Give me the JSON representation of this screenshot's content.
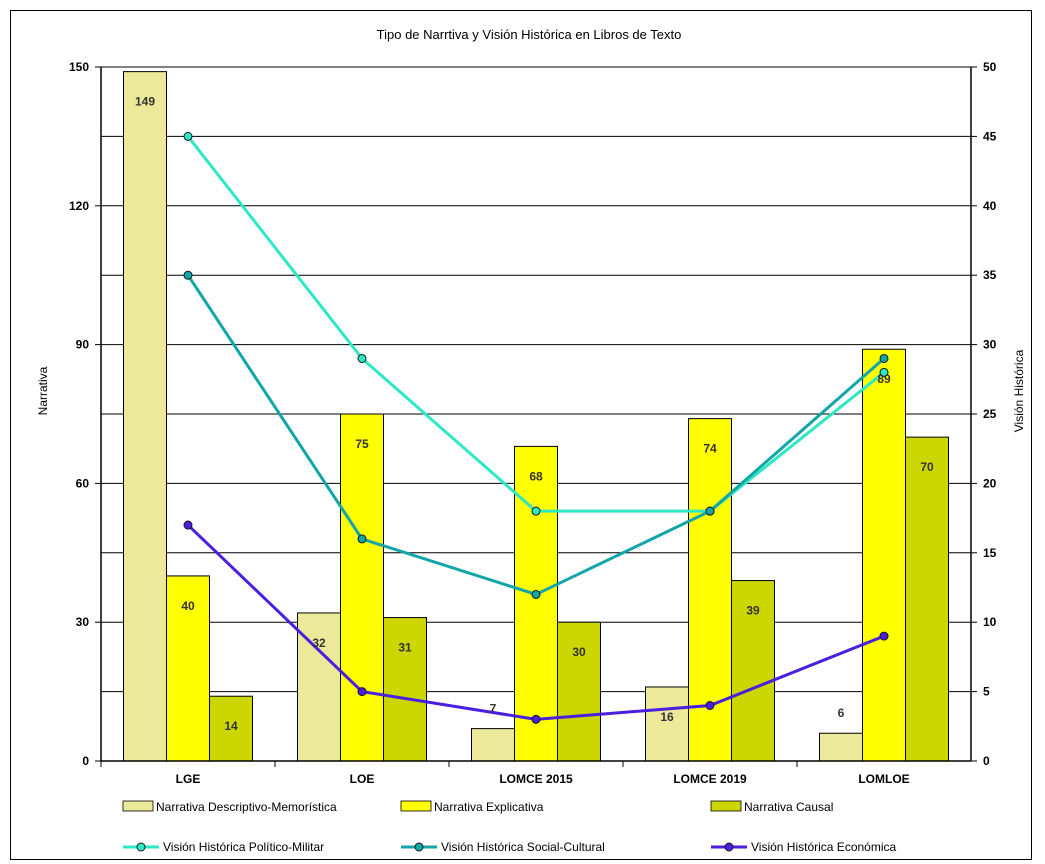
{
  "chart_data": {
    "type": "bar",
    "title": "Tipo de Narrtiva y Visión Histórica en Libros de Texto",
    "categories": [
      "LGE",
      "LOE",
      "LOMCE 2015",
      "LOMCE 2019",
      "LOMLOE"
    ],
    "ylabel": "Narrativa",
    "y2label": "Visión Histórica",
    "ylim": [
      0,
      150
    ],
    "y2lim": [
      0,
      50
    ],
    "yticks": [
      0,
      30,
      60,
      90,
      120,
      150
    ],
    "y2ticks": [
      0,
      5,
      10,
      15,
      20,
      25,
      30,
      35,
      40,
      45,
      50
    ],
    "grid": true,
    "legend_position": "bottom",
    "bar_series": [
      {
        "name": "Narrativa Descriptivo-Memorística",
        "values": [
          149,
          32,
          7,
          16,
          6
        ],
        "color": "#EDE99A"
      },
      {
        "name": "Narrativa Explicativa",
        "values": [
          40,
          75,
          68,
          74,
          89
        ],
        "color": "#FFFF00"
      },
      {
        "name": "Narrativa Causal",
        "values": [
          14,
          31,
          30,
          39,
          70
        ],
        "color": "#CCD600"
      }
    ],
    "line_series": [
      {
        "name": "Visión Histórica Político-Militar",
        "values": [
          45,
          29,
          18,
          18,
          28
        ],
        "color": "#2DE8C4",
        "axis": "right"
      },
      {
        "name": "Visión Histórica Social-Cultural",
        "values": [
          35,
          16,
          12,
          18,
          29
        ],
        "color": "#12A6A8",
        "axis": "right"
      },
      {
        "name": "Visión Histórica Económica",
        "values": [
          17,
          5,
          3,
          4,
          9
        ],
        "color": "#4A1FE0",
        "axis": "right"
      }
    ]
  }
}
